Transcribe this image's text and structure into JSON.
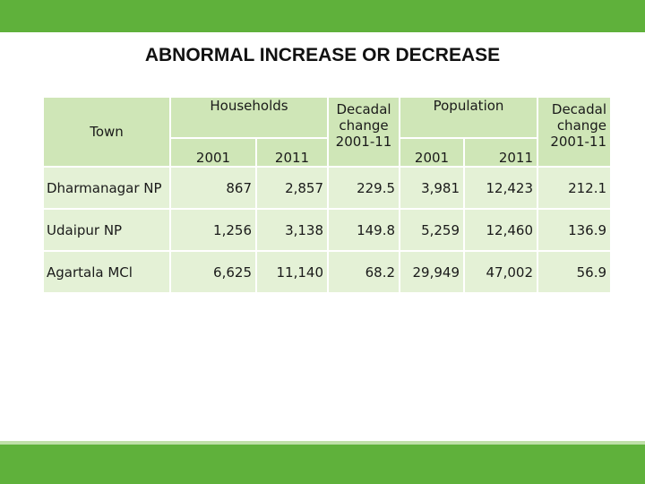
{
  "slide": {
    "title": "ABNORMAL INCREASE OR DECREASE",
    "colors": {
      "accent": "#5fb13b",
      "header_fill": "#cfe6b7",
      "row_fill": "#e4f1d6"
    }
  },
  "table": {
    "headers": {
      "town": "Town",
      "households": "Households",
      "population": "Population",
      "hh_2001": "2001",
      "hh_2011": "2011",
      "hh_decadal_line1": "Decadal",
      "hh_decadal_line2": "change",
      "hh_decadal_line3": "2001-11",
      "pop_2001": "2001",
      "pop_2011": "2011",
      "pop_decadal_line1": "Decadal",
      "pop_decadal_line2": "change",
      "pop_decadal_line3": "2001-11"
    },
    "rows": [
      {
        "town": "Dharmanagar NP",
        "hh2001": "867",
        "hh2011": "2,857",
        "hh_change": "229.5",
        "pop2001": "3,981",
        "pop2011": "12,423",
        "pop_change": "212.1"
      },
      {
        "town": "Udaipur NP",
        "hh2001": "1,256",
        "hh2011": "3,138",
        "hh_change": "149.8",
        "pop2001": "5,259",
        "pop2011": "12,460",
        "pop_change": "136.9"
      },
      {
        "town": "Agartala MCl",
        "hh2001": "6,625",
        "hh2011": "11,140",
        "hh_change": "68.2",
        "pop2001": "29,949",
        "pop2011": "47,002",
        "pop_change": "56.9"
      }
    ]
  }
}
